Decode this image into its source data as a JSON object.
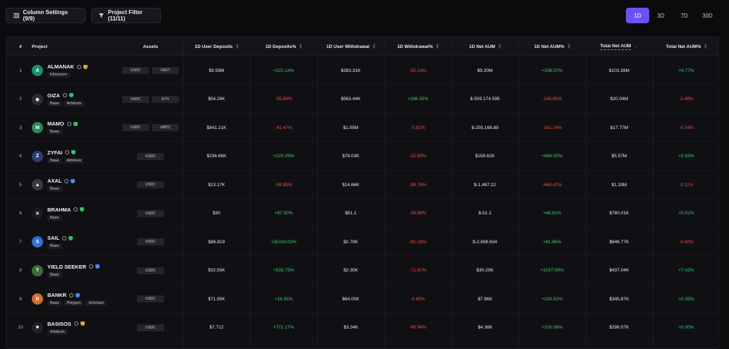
{
  "toolbar": {
    "column_settings": "Column Settings (9/9)",
    "project_filter": "Project Filter (11/11)"
  },
  "timeframes": [
    "1D",
    "3D",
    "7D",
    "30D"
  ],
  "active_timeframe": "1D",
  "headers": {
    "index": "#",
    "project": "Project",
    "assets": "Assets",
    "deposits": "1D User Deposits",
    "deposits_pct": "1D Deposits%",
    "withdrawal": "1D User Withdrawal",
    "withdrawal_pct": "1D Withdrawal%",
    "net_aum": "1D Net AUM",
    "net_aum_pct": "1D Net AUM%",
    "total_net_aum": "Total Net AUM",
    "total_net_aum_pct": "Total Net AUM%"
  },
  "rows": [
    {
      "idx": "1",
      "name": "ALMANAK",
      "logo": "A",
      "logo_color": "#1c8f6b",
      "badge": "gold",
      "chains": [
        "Ethereum"
      ],
      "assets": [
        "USDC",
        "USDT"
      ],
      "deposits": "$9.59M",
      "deposits_pct": "+222.14%",
      "withdrawal": "$393.31K",
      "withdrawal_pct": "-55.19%",
      "net_aum": "$9.20M",
      "net_aum_pct": "+338.07%",
      "total": "$103.39M",
      "total_pct": "+9.77%"
    },
    {
      "idx": "2",
      "name": "GIZA",
      "logo": "◆",
      "logo_color": "#2b2b33",
      "badge": "green",
      "chains": [
        "Base",
        "Arbitrum"
      ],
      "assets": [
        "USDC",
        "ETH"
      ],
      "deposits": "$54.26K",
      "deposits_pct": "-95.68%",
      "withdrawal": "$563.44K",
      "withdrawal_pct": "+288.35%",
      "net_aum": "$-509,174.595",
      "net_aum_pct": "-145.65%",
      "total": "$20.04M",
      "total_pct": "-2.48%"
    },
    {
      "idx": "3",
      "name": "MAMO",
      "logo": "M",
      "logo_color": "#2a8a5a",
      "badge": "green",
      "chains": [
        "Base"
      ],
      "assets": [
        "USDC",
        "cbBTC"
      ],
      "deposits": "$841.21K",
      "deposits_pct": "-41.47%",
      "withdrawal": "$1.05M",
      "withdrawal_pct": "-5.02%",
      "net_aum": "$-205,168.89",
      "net_aum_pct": "-161.14%",
      "total": "$17.77M",
      "total_pct": "-0.74%"
    },
    {
      "idx": "4",
      "name": "ZYFAI",
      "logo": "Z",
      "logo_color": "#2c3e7a",
      "badge": "green",
      "chains": [
        "Base",
        "Arbitrum"
      ],
      "assets": [
        "USDC"
      ],
      "deposits": "$236.66K",
      "deposits_pct": "+220.29%",
      "withdrawal": "$78.03K",
      "withdrawal_pct": "-22.69%",
      "net_aum": "$158.62K",
      "net_aum_pct": "+686.50%",
      "total": "$5.57M",
      "total_pct": "+2.93%"
    },
    {
      "idx": "5",
      "name": "AXAL",
      "logo": "▲",
      "logo_color": "#3a3a44",
      "badge": "blue",
      "chains": [
        "Base"
      ],
      "assets": [
        "USDC"
      ],
      "deposits": "$13.17K",
      "deposits_pct": "-98.89%",
      "withdrawal": "$14.66K",
      "withdrawal_pct": "-98.76%",
      "net_aum": "$-1,487.22",
      "net_aum_pct": "-468.42%",
      "total": "$1.33M",
      "total_pct": "-0.11%"
    },
    {
      "idx": "6",
      "name": "BRAHMA",
      "logo": "✕",
      "logo_color": "#1a1a1f",
      "badge": "green",
      "chains": [
        "Base"
      ],
      "assets": [
        "USDC"
      ],
      "deposits": "$30",
      "deposits_pct": "+87.50%",
      "withdrawal": "$81.1",
      "withdrawal_pct": "-29.98%",
      "net_aum": "$-51.1",
      "net_aum_pct": "+48.81%",
      "total": "$780.01K",
      "total_pct": "+0.01%"
    },
    {
      "idx": "7",
      "name": "SAIL",
      "logo": "S",
      "logo_color": "#2f6fd8",
      "badge": "green",
      "chains": [
        "Base"
      ],
      "assets": [
        "USDC"
      ],
      "deposits": "$86.819",
      "deposits_pct": "+35118.02%",
      "withdrawal": "$2.79K",
      "withdrawal_pct": "-81.28%",
      "net_aum": "$-2,698.634",
      "net_aum_pct": "+81.86%",
      "total": "$646.77K",
      "total_pct": "-0.42%"
    },
    {
      "idx": "8",
      "name": "YIELD SEEKER",
      "logo": "Y",
      "logo_color": "#3f6a3a",
      "badge": "blue",
      "chains": [
        "Base"
      ],
      "assets": [
        "USDC"
      ],
      "deposits": "$32.55K",
      "deposits_pct": "+533.73%",
      "withdrawal": "$2.35K",
      "withdrawal_pct": "-71.87%",
      "net_aum": "$30.20K",
      "net_aum_pct": "+1037.00%",
      "total": "$437.04K",
      "total_pct": "+7.42%"
    },
    {
      "idx": "9",
      "name": "BANKR",
      "logo": "B",
      "logo_color": "#d96a2a",
      "badge": "blue",
      "chains": [
        "Base",
        "Polygon",
        "Unichain"
      ],
      "assets": [
        "USDC"
      ],
      "deposits": "$71.95K",
      "deposits_pct": "+16.55%",
      "withdrawal": "$64.00K",
      "withdrawal_pct": "-5.65%",
      "net_aum": "$7.96K",
      "net_aum_pct": "+230.62%",
      "total": "$345.87K",
      "total_pct": "+2.35%"
    },
    {
      "idx": "10",
      "name": "BASISOS",
      "logo": "■",
      "logo_color": "#202026",
      "badge": "gold",
      "chains": [
        "Arbitrum"
      ],
      "assets": [
        "USDC"
      ],
      "deposits": "$7.712",
      "deposits_pct": "+771.17%",
      "withdrawal": "$3.346",
      "withdrawal_pct": "-99.94%",
      "net_aum": "$4.366",
      "net_aum_pct": "+100.08%",
      "total": "$296.07K",
      "total_pct": "+0.00%"
    }
  ],
  "colors": {
    "accent": "#6c52f2",
    "positive": "#3fd06b",
    "negative": "#f0513c"
  }
}
